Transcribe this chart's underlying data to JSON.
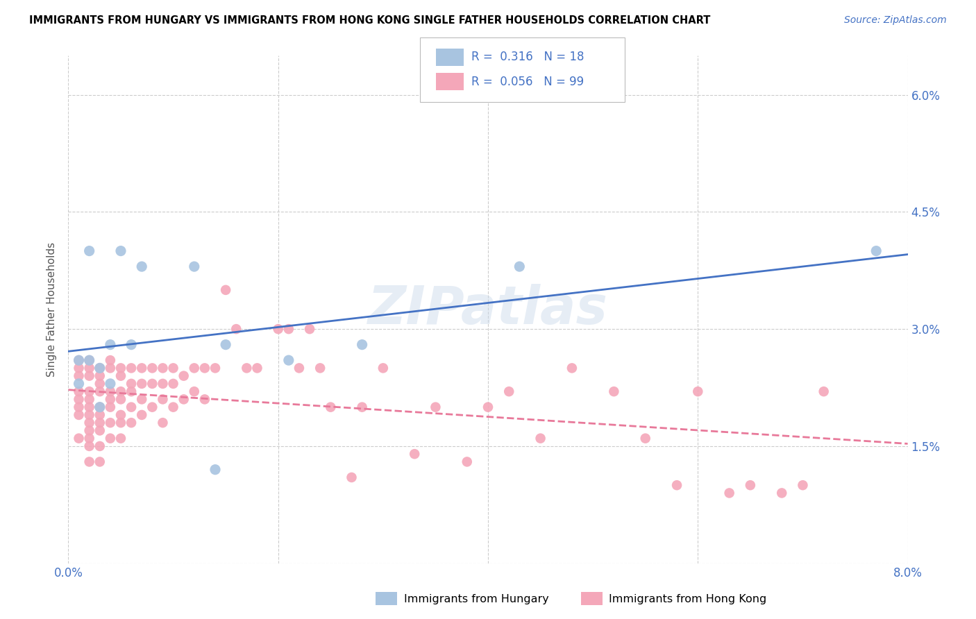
{
  "title": "IMMIGRANTS FROM HUNGARY VS IMMIGRANTS FROM HONG KONG SINGLE FATHER HOUSEHOLDS CORRELATION CHART",
  "source": "Source: ZipAtlas.com",
  "ylabel": "Single Father Households",
  "xlim": [
    0.0,
    0.08
  ],
  "ylim": [
    0.0,
    0.065
  ],
  "x_ticks": [
    0.0,
    0.02,
    0.04,
    0.06,
    0.08
  ],
  "x_tick_labels": [
    "0.0%",
    "",
    "",
    "",
    "8.0%"
  ],
  "y_ticks": [
    0.0,
    0.015,
    0.03,
    0.045,
    0.06
  ],
  "y_tick_labels": [
    "",
    "1.5%",
    "3.0%",
    "4.5%",
    "6.0%"
  ],
  "hungary_color": "#a8c4e0",
  "hong_kong_color": "#f4a7b9",
  "hungary_line_color": "#4472c4",
  "hong_kong_line_color": "#e8799a",
  "legend_R_hungary": "0.316",
  "legend_N_hungary": "18",
  "legend_R_hong_kong": "0.056",
  "legend_N_hong_kong": "99",
  "watermark": "ZIPatlas",
  "hungary_x": [
    0.001,
    0.001,
    0.002,
    0.002,
    0.003,
    0.003,
    0.004,
    0.004,
    0.005,
    0.006,
    0.007,
    0.012,
    0.014,
    0.015,
    0.021,
    0.028,
    0.043,
    0.077
  ],
  "hungary_y": [
    0.026,
    0.023,
    0.026,
    0.04,
    0.02,
    0.025,
    0.028,
    0.023,
    0.04,
    0.028,
    0.038,
    0.038,
    0.012,
    0.028,
    0.026,
    0.028,
    0.038,
    0.04
  ],
  "hong_kong_x": [
    0.001,
    0.001,
    0.001,
    0.001,
    0.001,
    0.001,
    0.001,
    0.001,
    0.002,
    0.002,
    0.002,
    0.002,
    0.002,
    0.002,
    0.002,
    0.002,
    0.002,
    0.002,
    0.002,
    0.002,
    0.003,
    0.003,
    0.003,
    0.003,
    0.003,
    0.003,
    0.003,
    0.003,
    0.003,
    0.003,
    0.004,
    0.004,
    0.004,
    0.004,
    0.004,
    0.004,
    0.004,
    0.005,
    0.005,
    0.005,
    0.005,
    0.005,
    0.005,
    0.005,
    0.006,
    0.006,
    0.006,
    0.006,
    0.006,
    0.007,
    0.007,
    0.007,
    0.007,
    0.008,
    0.008,
    0.008,
    0.009,
    0.009,
    0.009,
    0.009,
    0.01,
    0.01,
    0.01,
    0.011,
    0.011,
    0.012,
    0.012,
    0.013,
    0.013,
    0.014,
    0.015,
    0.016,
    0.017,
    0.018,
    0.02,
    0.021,
    0.022,
    0.023,
    0.024,
    0.025,
    0.027,
    0.028,
    0.03,
    0.033,
    0.035,
    0.038,
    0.04,
    0.042,
    0.045,
    0.048,
    0.052,
    0.055,
    0.058,
    0.06,
    0.063,
    0.065,
    0.068,
    0.07,
    0.072
  ],
  "hong_kong_y": [
    0.026,
    0.025,
    0.024,
    0.022,
    0.021,
    0.02,
    0.019,
    0.016,
    0.026,
    0.025,
    0.024,
    0.022,
    0.021,
    0.02,
    0.019,
    0.018,
    0.017,
    0.016,
    0.015,
    0.013,
    0.025,
    0.024,
    0.023,
    0.022,
    0.02,
    0.019,
    0.018,
    0.017,
    0.015,
    0.013,
    0.026,
    0.025,
    0.022,
    0.021,
    0.02,
    0.018,
    0.016,
    0.025,
    0.024,
    0.022,
    0.021,
    0.019,
    0.018,
    0.016,
    0.025,
    0.023,
    0.022,
    0.02,
    0.018,
    0.025,
    0.023,
    0.021,
    0.019,
    0.025,
    0.023,
    0.02,
    0.025,
    0.023,
    0.021,
    0.018,
    0.025,
    0.023,
    0.02,
    0.024,
    0.021,
    0.025,
    0.022,
    0.025,
    0.021,
    0.025,
    0.035,
    0.03,
    0.025,
    0.025,
    0.03,
    0.03,
    0.025,
    0.03,
    0.025,
    0.02,
    0.011,
    0.02,
    0.025,
    0.014,
    0.02,
    0.013,
    0.02,
    0.022,
    0.016,
    0.025,
    0.022,
    0.016,
    0.01,
    0.022,
    0.009,
    0.01,
    0.009,
    0.01,
    0.022
  ]
}
